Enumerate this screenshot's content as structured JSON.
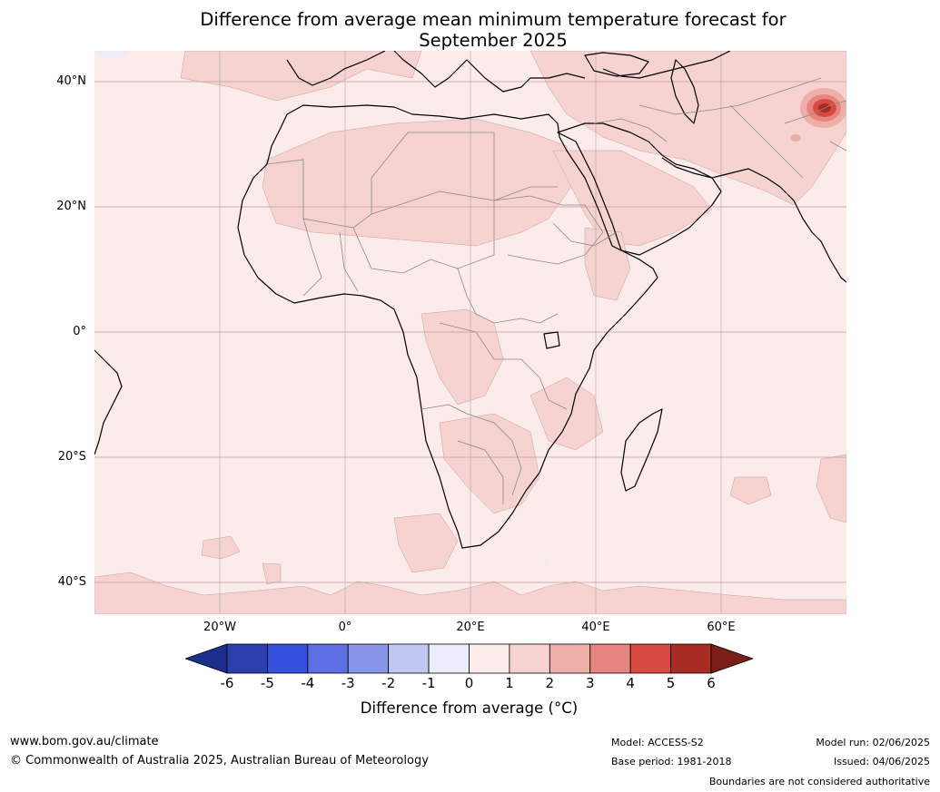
{
  "title_line1": "Difference from average mean minimum temperature forecast for",
  "title_line2": "September 2025",
  "map": {
    "region": "Africa and surrounds",
    "lon_range": [
      -40,
      80
    ],
    "lat_range": [
      -45,
      45
    ],
    "lat_labels": [
      "40°N",
      "20°N",
      "0°",
      "20°S",
      "40°S"
    ],
    "lon_labels": [
      "20°W",
      "0°",
      "20°E",
      "40°E",
      "60°E"
    ],
    "colors": {
      "band_0_1": "#fbebea",
      "band_1_2": "#f6d3d1",
      "band_2_3": "#eeaeaa",
      "band_3_4": "#e6857f",
      "band_4_5": "#d94b40",
      "band_5_6": "#a82b24",
      "band_gt6": "#7a1e18",
      "band_m1_0": "#ebedfa"
    },
    "hotspot": {
      "label": "strongest anomaly",
      "lon": 76,
      "lat": 36,
      "value_range": "4-6"
    }
  },
  "colorbar": {
    "ticks": [
      "-6",
      "-5",
      "-4",
      "-3",
      "-2",
      "-1",
      "0",
      "1",
      "2",
      "3",
      "4",
      "5",
      "6"
    ],
    "colors": [
      "#1b2f8a",
      "#2a3fab",
      "#3550de",
      "#5b70e2",
      "#8695e8",
      "#c1c8f2",
      "#ebedfa",
      "#fbebea",
      "#f6d3d1",
      "#eeaeaa",
      "#e6857f",
      "#d94b40",
      "#a82b24",
      "#7a1e18"
    ],
    "label": "Difference from average (°C)"
  },
  "footer": {
    "url": "www.bom.gov.au/climate",
    "copyright": "© Commonwealth of Australia 2025, Australian Bureau of Meteorology",
    "model": "Model: ACCESS-S2",
    "base_period": "Base period: 1981-2018",
    "model_run": "Model run: 02/06/2025",
    "issued": "Issued: 04/06/2025",
    "disclaimer": "Boundaries are not considered authoritative"
  }
}
